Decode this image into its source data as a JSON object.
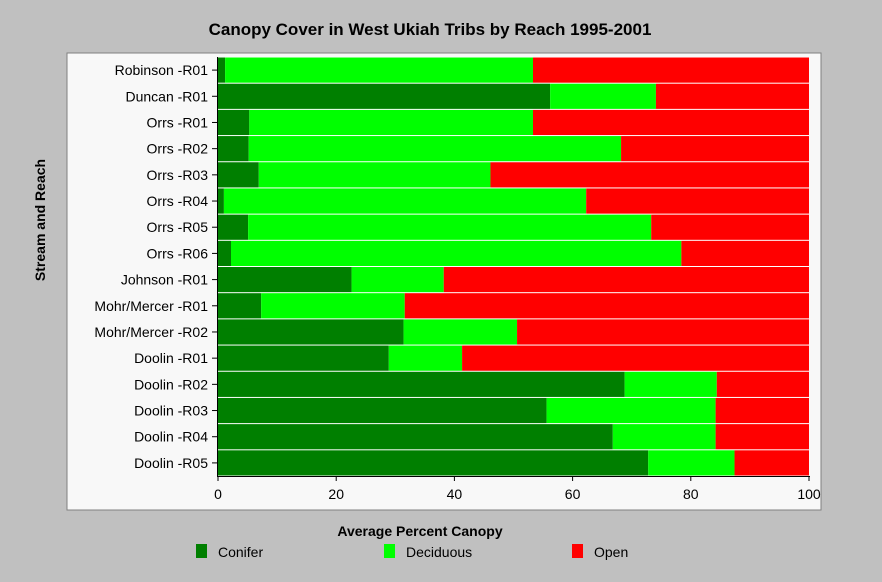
{
  "chart_data": {
    "type": "bar",
    "orientation": "horizontal",
    "stacked": true,
    "title": "Canopy Cover in West Ukiah Tribs by Reach 1995-2001",
    "xlabel": "Average Percent Canopy",
    "ylabel": "Stream and Reach",
    "xlim": [
      0,
      100
    ],
    "xticks": [
      0,
      20,
      40,
      60,
      80,
      100
    ],
    "legend_position": "bottom",
    "categories": [
      "Robinson -R01",
      "Duncan -R01",
      "Orrs -R01",
      "Orrs -R02",
      "Orrs -R03",
      "Orrs -R04",
      "Orrs -R05",
      "Orrs -R06",
      "Johnson -R01",
      "Mohr/Mercer -R01",
      "Mohr/Mercer -R02",
      "Doolin -R01",
      "Doolin -R02",
      "Doolin -R03",
      "Doolin -R04",
      "Doolin -R05"
    ],
    "series": [
      {
        "name": "Conifer",
        "color": "#007f00",
        "values": [
          1.2,
          56.2,
          5.3,
          5.2,
          6.9,
          1.0,
          5.1,
          2.2,
          22.6,
          7.3,
          31.4,
          28.9,
          68.8,
          55.6,
          66.8,
          72.8
        ]
      },
      {
        "name": "Deciduous",
        "color": "#00ff00",
        "values": [
          52.1,
          17.9,
          48.0,
          63.0,
          39.2,
          61.3,
          68.2,
          76.2,
          15.6,
          24.3,
          19.2,
          12.4,
          15.6,
          28.6,
          17.4,
          14.6
        ]
      },
      {
        "name": "Open",
        "color": "#ff0000",
        "values": [
          46.7,
          25.9,
          46.7,
          31.8,
          53.9,
          37.7,
          26.7,
          21.6,
          61.8,
          68.4,
          49.4,
          58.7,
          15.6,
          15.8,
          15.8,
          12.6
        ]
      }
    ]
  }
}
